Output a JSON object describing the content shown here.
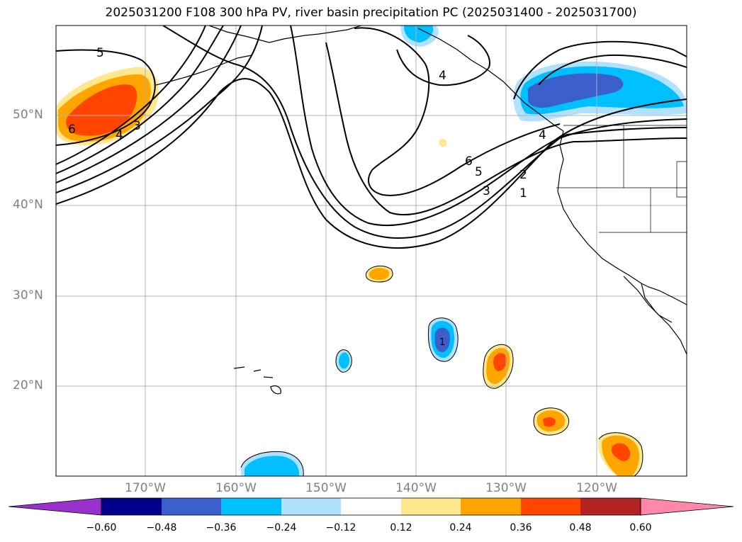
{
  "title": "2025031200 F108 300 hPa PV, river basin precipitation PC (2025031400 - 2025031700)",
  "latitude_labels": [
    "50°N",
    "40°N",
    "30°N",
    "20°N"
  ],
  "longitude_labels": [
    "170°W",
    "160°W",
    "150°W",
    "140°W",
    "130°W",
    "120°W"
  ],
  "pv_contour_labels": [
    "5",
    "6",
    "4",
    "3",
    "4",
    "4",
    "6",
    "5",
    "3",
    "2",
    "1"
  ],
  "colorbar": {
    "ticks": [
      "−0.60",
      "−0.48",
      "−0.36",
      "−0.24",
      "−0.12",
      "0.12",
      "0.24",
      "0.36",
      "0.48",
      "0.60"
    ],
    "colors": [
      "#9932cc",
      "#00008b",
      "#3a5fcd",
      "#00bfff",
      "#b0e2ff",
      "#ffffff",
      "#ffe88c",
      "#ffa500",
      "#ff4500",
      "#b22222",
      "#ff88aa"
    ]
  },
  "anomaly_markers": [
    "1"
  ]
}
